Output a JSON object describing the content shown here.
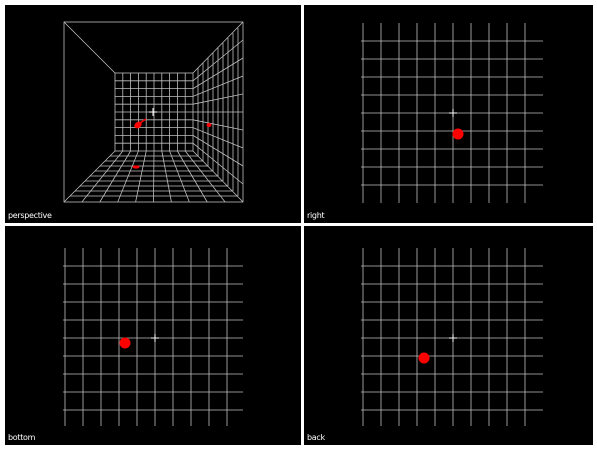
{
  "app": {
    "view_layout": "quad"
  },
  "colors": {
    "viewport_background": "#000000",
    "grid_line": "#bfbfbf",
    "object": "#ff0000",
    "cursor": "#ffffff",
    "separator": "#ffffff",
    "label_text": "#ffffff"
  },
  "viewports": [
    {
      "id": "perspective",
      "label": "perspective",
      "grid": "3d-room"
    },
    {
      "id": "right",
      "label": "right",
      "grid": "flat"
    },
    {
      "id": "bottom",
      "label": "bottom",
      "grid": "flat"
    },
    {
      "id": "back",
      "label": "back",
      "grid": "flat"
    }
  ],
  "icons": {
    "cursor": "crosshair-icon",
    "object": "red-sphere-icon"
  }
}
